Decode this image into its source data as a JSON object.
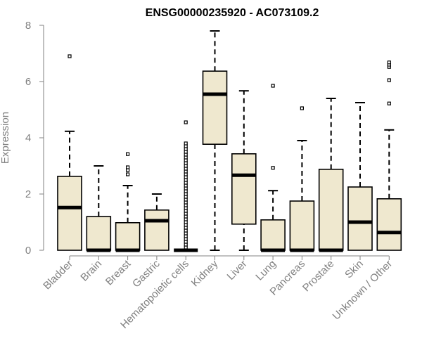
{
  "chart_data": {
    "type": "boxplot",
    "title": "ENSG00000235920 - AC073109.2",
    "xlabel": "",
    "ylabel": "Expression",
    "ylim": [
      0,
      8
    ],
    "yticks": [
      "0",
      "2",
      "4",
      "6",
      "8"
    ],
    "grid": false,
    "colors": {
      "box_fill": "#efe8cf",
      "stroke": "#000000",
      "axis": "#808080"
    },
    "categories": [
      "Bladder",
      "Brain",
      "Breast",
      "Gastric",
      "Hematopoietic cells",
      "Kidney",
      "Liver",
      "Lung",
      "Pancreas",
      "Prostate",
      "Skin",
      "Unknown / Other"
    ],
    "boxes": [
      {
        "q1": 0,
        "median": 1.52,
        "q3": 2.63,
        "whisker_low": 0,
        "whisker_high": 4.23,
        "outliers": [
          6.9
        ]
      },
      {
        "q1": 0,
        "median": 0,
        "q3": 1.2,
        "whisker_low": 0,
        "whisker_high": 3.0,
        "outliers": []
      },
      {
        "q1": 0,
        "median": 0,
        "q3": 0.98,
        "whisker_low": 0,
        "whisker_high": 2.3,
        "outliers": [
          2.7,
          2.85,
          2.95,
          3.42
        ]
      },
      {
        "q1": 0,
        "median": 1.05,
        "q3": 1.43,
        "whisker_low": 0,
        "whisker_high": 2.0,
        "outliers": []
      },
      {
        "q1": 0,
        "median": 0,
        "q3": 0,
        "whisker_low": 0,
        "whisker_high": 0,
        "outliers": [
          0.1,
          0.2,
          0.3,
          0.4,
          0.5,
          0.6,
          0.7,
          0.8,
          0.9,
          1.0,
          1.1,
          1.2,
          1.3,
          1.4,
          1.5,
          1.6,
          1.7,
          1.8,
          1.9,
          2.0,
          2.1,
          2.2,
          2.3,
          2.4,
          2.5,
          2.6,
          2.7,
          2.8,
          2.9,
          3.0,
          3.1,
          3.2,
          3.3,
          3.4,
          3.5,
          3.6,
          3.7,
          3.8,
          4.55
        ]
      },
      {
        "q1": 3.77,
        "median": 5.55,
        "q3": 6.37,
        "whisker_low": 0,
        "whisker_high": 7.8,
        "outliers": []
      },
      {
        "q1": 0.93,
        "median": 2.67,
        "q3": 3.43,
        "whisker_low": 0,
        "whisker_high": 5.67,
        "outliers": []
      },
      {
        "q1": 0,
        "median": 0,
        "q3": 1.08,
        "whisker_low": 0,
        "whisker_high": 2.12,
        "outliers": [
          2.93,
          5.85
        ]
      },
      {
        "q1": 0,
        "median": 0,
        "q3": 1.75,
        "whisker_low": 0,
        "whisker_high": 3.9,
        "outliers": [
          5.05
        ]
      },
      {
        "q1": 0,
        "median": 0,
        "q3": 2.88,
        "whisker_low": 0,
        "whisker_high": 5.4,
        "outliers": []
      },
      {
        "q1": 0,
        "median": 1.0,
        "q3": 2.25,
        "whisker_low": 0,
        "whisker_high": 5.25,
        "outliers": []
      },
      {
        "q1": 0,
        "median": 0.63,
        "q3": 1.83,
        "whisker_low": 0,
        "whisker_high": 4.28,
        "outliers": [
          5.22,
          6.05,
          6.52,
          6.6,
          6.68
        ]
      }
    ]
  }
}
